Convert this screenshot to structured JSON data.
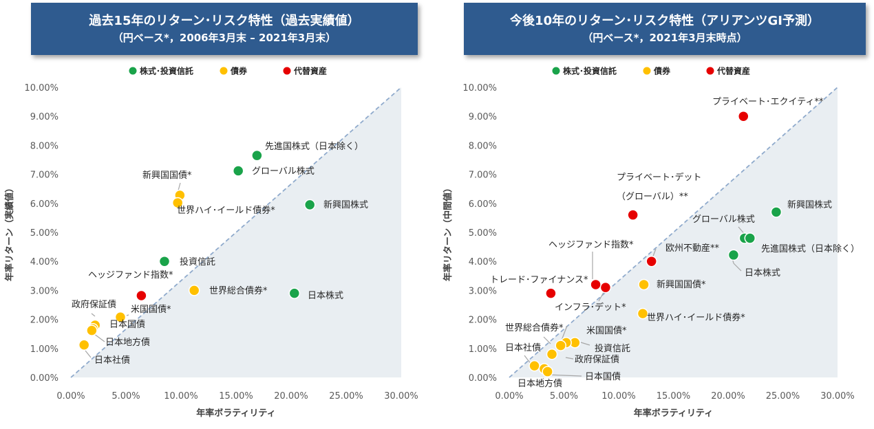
{
  "left": {
    "title_line1": "過去15年のリターン･リスク特性（過去実績値）",
    "title_line2": "（円ベース*，2006年3月末 – 2021年3月末）",
    "xlabel": "年率ボラティリティ",
    "ylabel": "年率リターン（実績値）"
  },
  "right": {
    "title_line1": "今後10年のリターン･リスク特性（アリアンツGI予測）",
    "title_line2": "（円ベース*，2021年3月末時点）",
    "xlabel": "年率ボラティリティ",
    "ylabel": "年率リターン（中間値）"
  },
  "legend": [
    "株式･投資信託",
    "債券",
    "代替資産"
  ],
  "colors": {
    "equity": "#1aa34a",
    "bond": "#ffc000",
    "alt": "#e60000",
    "title_bg": "#2f5b8f",
    "shade": "#e9eef2",
    "diag": "#8faacc"
  },
  "chart_data": [
    {
      "type": "scatter",
      "title": "過去15年のリターン･リスク特性（過去実績値）",
      "xlabel": "年率ボラティリティ",
      "ylabel": "年率リターン（実績値）",
      "xlim": [
        0,
        30
      ],
      "ylim": [
        0,
        10
      ],
      "x_ticks": [
        "0.00%",
        "5.00%",
        "10.00%",
        "15.00%",
        "20.00%",
        "25.00%",
        "30.00%"
      ],
      "y_ticks": [
        "0.00%",
        "1.00%",
        "2.00%",
        "3.00%",
        "4.00%",
        "5.00%",
        "6.00%",
        "7.00%",
        "8.00%",
        "9.00%",
        "10.00%"
      ],
      "legend_position": "top-center",
      "grid": false,
      "points": [
        {
          "label": "先進国株式（日本除く）",
          "x": 16.9,
          "y": 7.65,
          "category": "equity"
        },
        {
          "label": "グローバル株式",
          "x": 15.2,
          "y": 7.12,
          "category": "equity"
        },
        {
          "label": "新興国株式",
          "x": 21.7,
          "y": 5.95,
          "category": "equity"
        },
        {
          "label": "投資信託",
          "x": 8.5,
          "y": 4.0,
          "category": "equity"
        },
        {
          "label": "日本株式",
          "x": 20.3,
          "y": 2.9,
          "category": "equity"
        },
        {
          "label": "新興国国債*",
          "x": 9.9,
          "y": 6.28,
          "category": "bond"
        },
        {
          "label": "世界ハイ･イールド債券*",
          "x": 9.7,
          "y": 6.02,
          "category": "bond"
        },
        {
          "label": "世界総合債券*",
          "x": 11.2,
          "y": 3.0,
          "category": "bond"
        },
        {
          "label": "米国国債*",
          "x": 4.5,
          "y": 2.08,
          "category": "bond"
        },
        {
          "label": "政府保証債",
          "x": 2.2,
          "y": 1.8,
          "category": "bond"
        },
        {
          "label": "日本国債",
          "x": 2.0,
          "y": 1.68,
          "category": "bond"
        },
        {
          "label": "日本地方債",
          "x": 1.9,
          "y": 1.62,
          "category": "bond"
        },
        {
          "label": "日本社債",
          "x": 1.2,
          "y": 1.12,
          "category": "bond"
        },
        {
          "label": "ヘッジファンド指数*",
          "x": 6.4,
          "y": 2.82,
          "category": "alt"
        }
      ]
    },
    {
      "type": "scatter",
      "title": "今後10年のリターン･リスク特性（アリアンツGI予測）",
      "xlabel": "年率ボラティリティ",
      "ylabel": "年率リターン（中間値）",
      "xlim": [
        0,
        30
      ],
      "ylim": [
        0,
        10
      ],
      "x_ticks": [
        "0.00%",
        "5.00%",
        "10.00%",
        "15.00%",
        "20.00%",
        "25.00%",
        "30.00%"
      ],
      "y_ticks": [
        "0.00%",
        "1.00%",
        "2.00%",
        "3.00%",
        "4.00%",
        "5.00%",
        "6.00%",
        "7.00%",
        "8.00%",
        "9.00%",
        "10.00%"
      ],
      "legend_position": "top-center",
      "grid": false,
      "points": [
        {
          "label": "新興国株式",
          "x": 24.4,
          "y": 5.7,
          "category": "equity"
        },
        {
          "label": "グローバル株式",
          "x": 21.5,
          "y": 4.8,
          "category": "equity"
        },
        {
          "label": "先進国株式（日本除く）",
          "x": 22.0,
          "y": 4.8,
          "category": "equity"
        },
        {
          "label": "日本株式",
          "x": 20.5,
          "y": 4.22,
          "category": "equity"
        },
        {
          "label": "投資信託",
          "x": 6.0,
          "y": 1.2,
          "category": "bond"
        },
        {
          "label": "新興国国債*",
          "x": 12.3,
          "y": 3.2,
          "category": "bond"
        },
        {
          "label": "世界ハイ･イールド債券*",
          "x": 12.2,
          "y": 2.2,
          "category": "bond"
        },
        {
          "label": "米国国債*",
          "x": 5.2,
          "y": 1.2,
          "category": "bond"
        },
        {
          "label": "世界総合債券*",
          "x": 4.7,
          "y": 1.1,
          "category": "bond"
        },
        {
          "label": "政府保証債",
          "x": 3.9,
          "y": 0.8,
          "category": "bond"
        },
        {
          "label": "日本社債",
          "x": 2.3,
          "y": 0.4,
          "category": "bond"
        },
        {
          "label": "日本地方債",
          "x": 3.2,
          "y": 0.3,
          "category": "bond"
        },
        {
          "label": "日本国債",
          "x": 3.5,
          "y": 0.2,
          "category": "bond"
        },
        {
          "label": "プライベート･エクイティ**",
          "x": 21.4,
          "y": 9.0,
          "category": "alt"
        },
        {
          "label": "プライベート･デット（グローバル）**",
          "x": 11.3,
          "y": 5.6,
          "category": "alt"
        },
        {
          "label": "欧州不動産**",
          "x": 13.0,
          "y": 4.0,
          "category": "alt"
        },
        {
          "label": "ヘッジファンド指数*",
          "x": 8.8,
          "y": 3.1,
          "category": "alt"
        },
        {
          "label": "トレード･ファイナンス*",
          "x": 7.9,
          "y": 3.2,
          "category": "alt"
        },
        {
          "label": "インフラ･デット*",
          "x": 3.8,
          "y": 2.9,
          "category": "alt"
        }
      ]
    }
  ]
}
